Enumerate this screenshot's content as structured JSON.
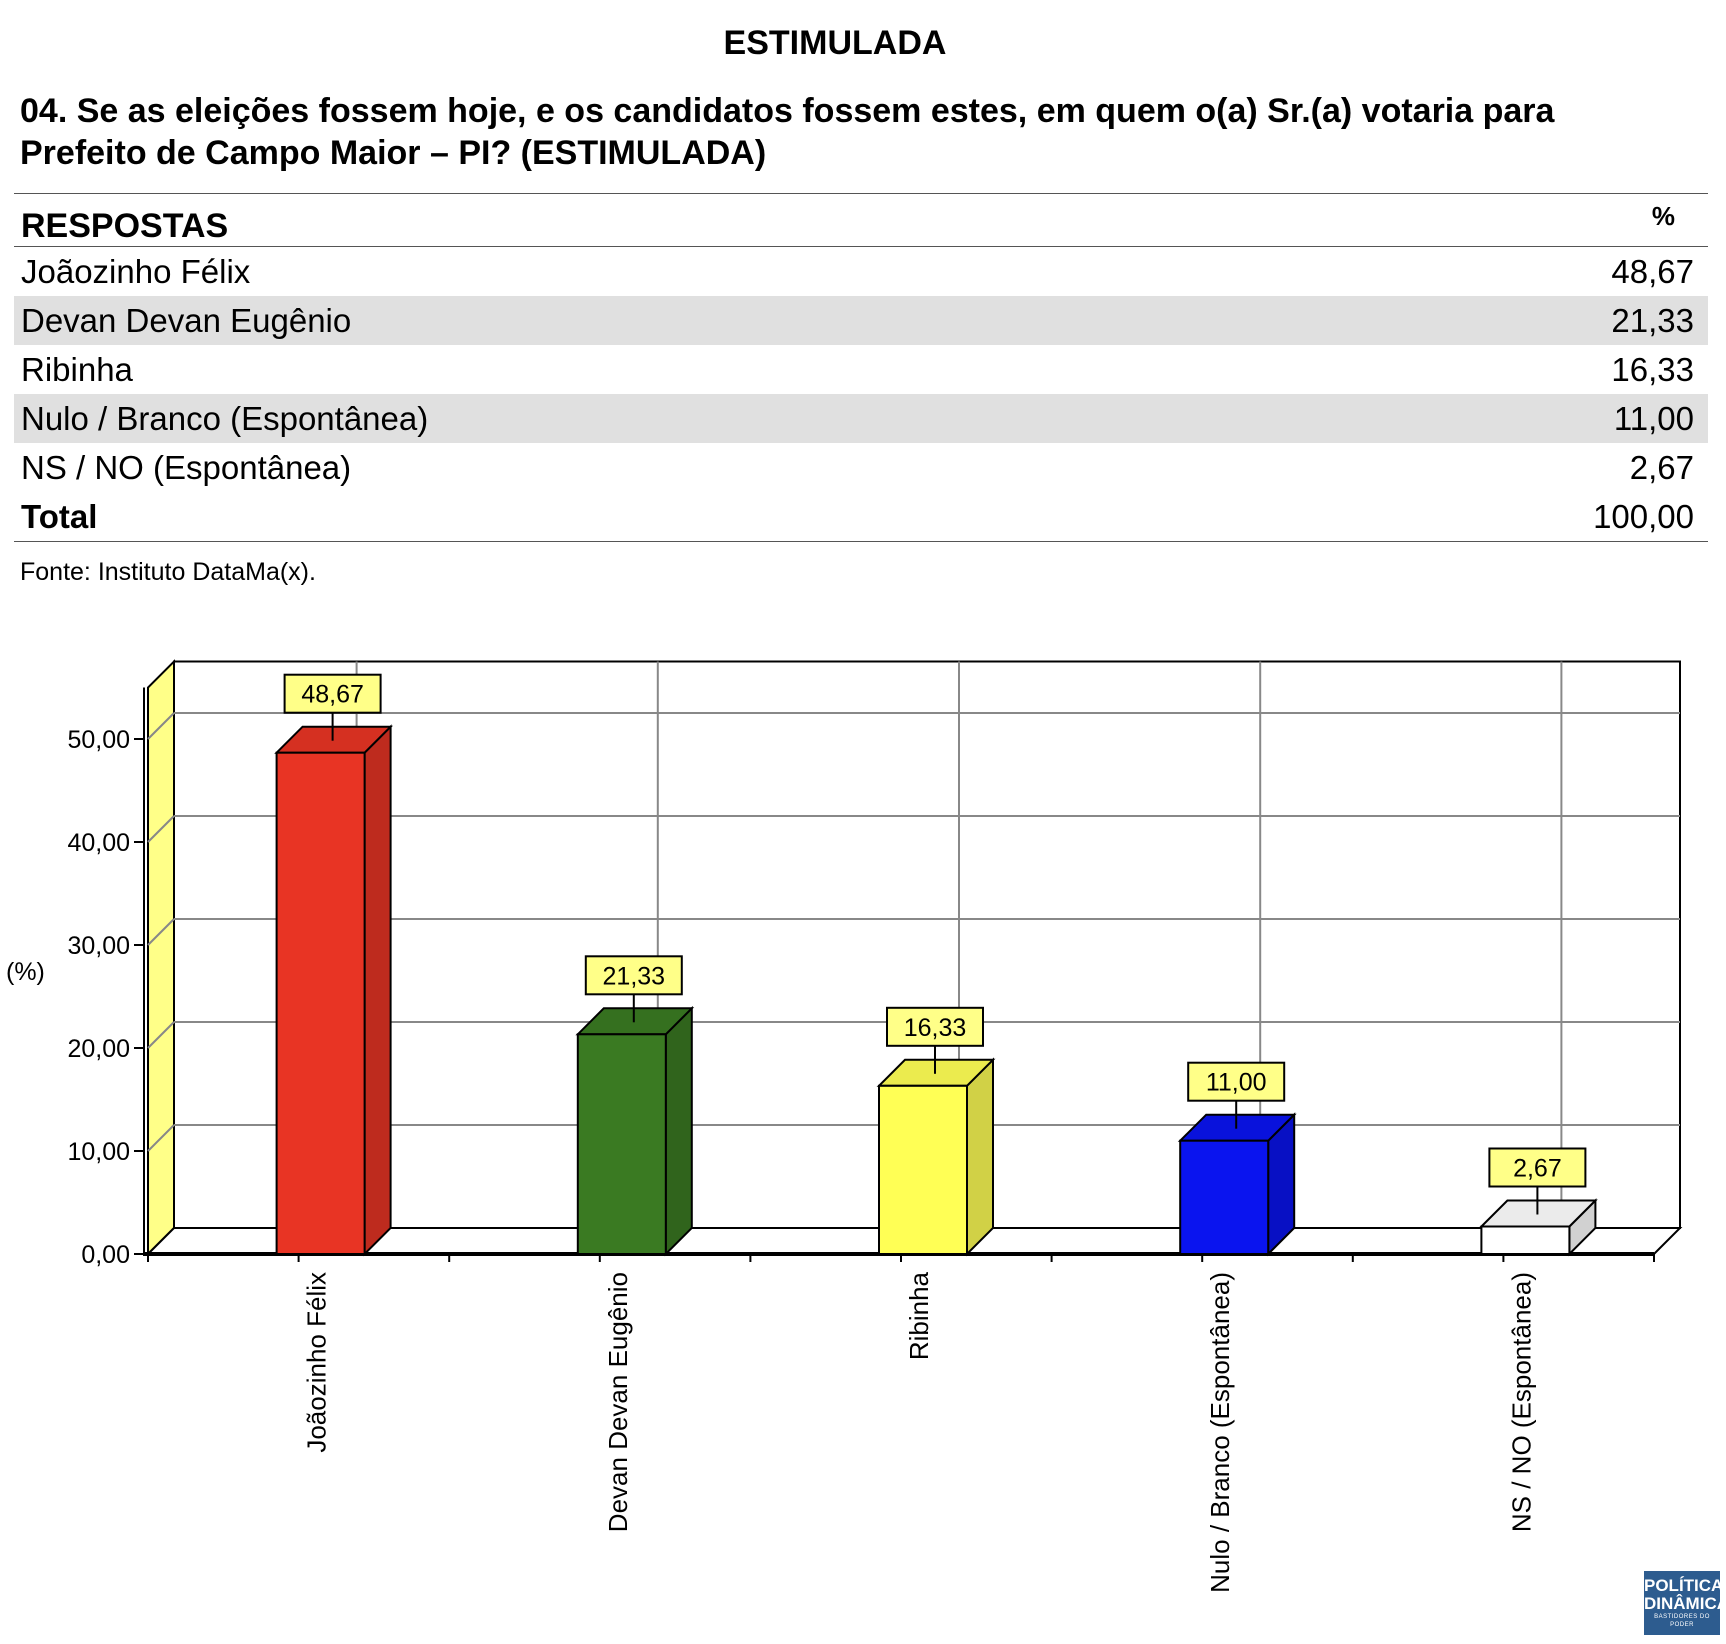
{
  "header": {
    "title": "ESTIMULADA"
  },
  "question": {
    "line1": "04. Se as eleições fossem hoje, e os candidatos fossem estes, em quem o(a) Sr.(a) votaria para",
    "line2": "Prefeito de Campo Maior – PI? (ESTIMULADA)"
  },
  "table": {
    "col_label": "RESPOSTAS",
    "col_value": "%",
    "rows": [
      {
        "label": "Joãozinho Félix",
        "value": "48,67"
      },
      {
        "label": "Devan Devan Eugênio",
        "value": "21,33"
      },
      {
        "label": "Ribinha",
        "value": "16,33"
      },
      {
        "label": "Nulo / Branco (Espontânea)",
        "value": "11,00"
      },
      {
        "label": "NS / NO (Espontânea)",
        "value": "2,67"
      }
    ],
    "total": {
      "label": "Total",
      "value": "100,00"
    }
  },
  "source": "Fonte: Instituto DataMa(x).",
  "chart_data": {
    "type": "bar",
    "categories": [
      "Joãozinho Félix",
      "Devan Devan Eugênio",
      "Ribinha",
      "Nulo / Branco (Espontânea)",
      "NS / NO (Espontânea)"
    ],
    "values": [
      48.67,
      21.33,
      16.33,
      11.0,
      2.67
    ],
    "data_labels": [
      "48,67",
      "21,33",
      "16,33",
      "11,00",
      "2,67"
    ],
    "colors": [
      "#e83424",
      "#3a7a22",
      "#ffff55",
      "#0a14ef",
      "#ffffff"
    ],
    "ylabel": "(%)",
    "yticks": [
      "0,00",
      "10,00",
      "20,00",
      "30,00",
      "40,00",
      "50,00"
    ],
    "ylim": [
      0,
      55
    ],
    "grid": true,
    "style": "3d",
    "wall_color": "#ffff88",
    "label_box_color": "#ffff88"
  },
  "watermark": {
    "line1": "POLÍTICA",
    "line2": "DINÂMICA",
    "tagline": "BASTIDORES DO PODER"
  }
}
